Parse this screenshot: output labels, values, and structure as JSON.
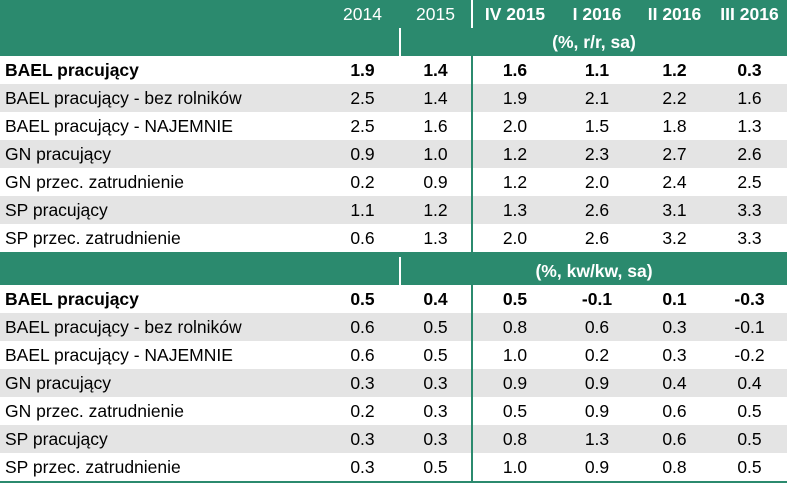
{
  "header": {
    "columns": [
      "2014",
      "2015",
      "IV 2015",
      "I 2016",
      "II 2016",
      "III 2016"
    ]
  },
  "sections": [
    {
      "unit": "(%, r/r, sa)",
      "rows": [
        {
          "label": "BAEL pracujący",
          "bold": true,
          "values": [
            "1.9",
            "1.4",
            "1.6",
            "1.1",
            "1.2",
            "0.3"
          ]
        },
        {
          "label": "BAEL pracujący - bez rolników",
          "bold": false,
          "values": [
            "2.5",
            "1.4",
            "1.9",
            "2.1",
            "2.2",
            "1.6"
          ]
        },
        {
          "label": "BAEL pracujący - NAJEMNIE",
          "bold": false,
          "values": [
            "2.5",
            "1.6",
            "2.0",
            "1.5",
            "1.8",
            "1.3"
          ]
        },
        {
          "label": "GN pracujący",
          "bold": false,
          "values": [
            "0.9",
            "1.0",
            "1.2",
            "2.3",
            "2.7",
            "2.6"
          ]
        },
        {
          "label": "GN przec. zatrudnienie",
          "bold": false,
          "values": [
            "0.2",
            "0.9",
            "1.2",
            "2.0",
            "2.4",
            "2.5"
          ]
        },
        {
          "label": "SP pracujący",
          "bold": false,
          "values": [
            "1.1",
            "1.2",
            "1.3",
            "2.6",
            "3.1",
            "3.3"
          ]
        },
        {
          "label": "SP przec. zatrudnienie",
          "bold": false,
          "values": [
            "0.6",
            "1.3",
            "2.0",
            "2.6",
            "3.2",
            "3.3"
          ]
        }
      ]
    },
    {
      "unit": "(%, kw/kw, sa)",
      "rows": [
        {
          "label": "BAEL pracujący",
          "bold": true,
          "values": [
            "0.5",
            "0.4",
            "0.5",
            "-0.1",
            "0.1",
            "-0.3"
          ]
        },
        {
          "label": "BAEL pracujący - bez rolników",
          "bold": false,
          "values": [
            "0.6",
            "0.5",
            "0.8",
            "0.6",
            "0.3",
            "-0.1"
          ]
        },
        {
          "label": "BAEL pracujący - NAJEMNIE",
          "bold": false,
          "values": [
            "0.6",
            "0.5",
            "1.0",
            "0.2",
            "0.3",
            "-0.2"
          ]
        },
        {
          "label": "GN pracujący",
          "bold": false,
          "values": [
            "0.3",
            "0.3",
            "0.9",
            "0.9",
            "0.4",
            "0.4"
          ]
        },
        {
          "label": "GN przec. zatrudnienie",
          "bold": false,
          "values": [
            "0.2",
            "0.3",
            "0.5",
            "0.9",
            "0.6",
            "0.5"
          ]
        },
        {
          "label": "SP pracujący",
          "bold": false,
          "values": [
            "0.3",
            "0.3",
            "0.8",
            "1.3",
            "0.6",
            "0.5"
          ]
        },
        {
          "label": "SP przec. zatrudnienie",
          "bold": false,
          "values": [
            "0.3",
            "0.5",
            "1.0",
            "0.9",
            "0.8",
            "0.5"
          ]
        }
      ]
    }
  ],
  "colors": {
    "header_bg": "#2b8a6e",
    "stripe": "#e4e4e4"
  }
}
